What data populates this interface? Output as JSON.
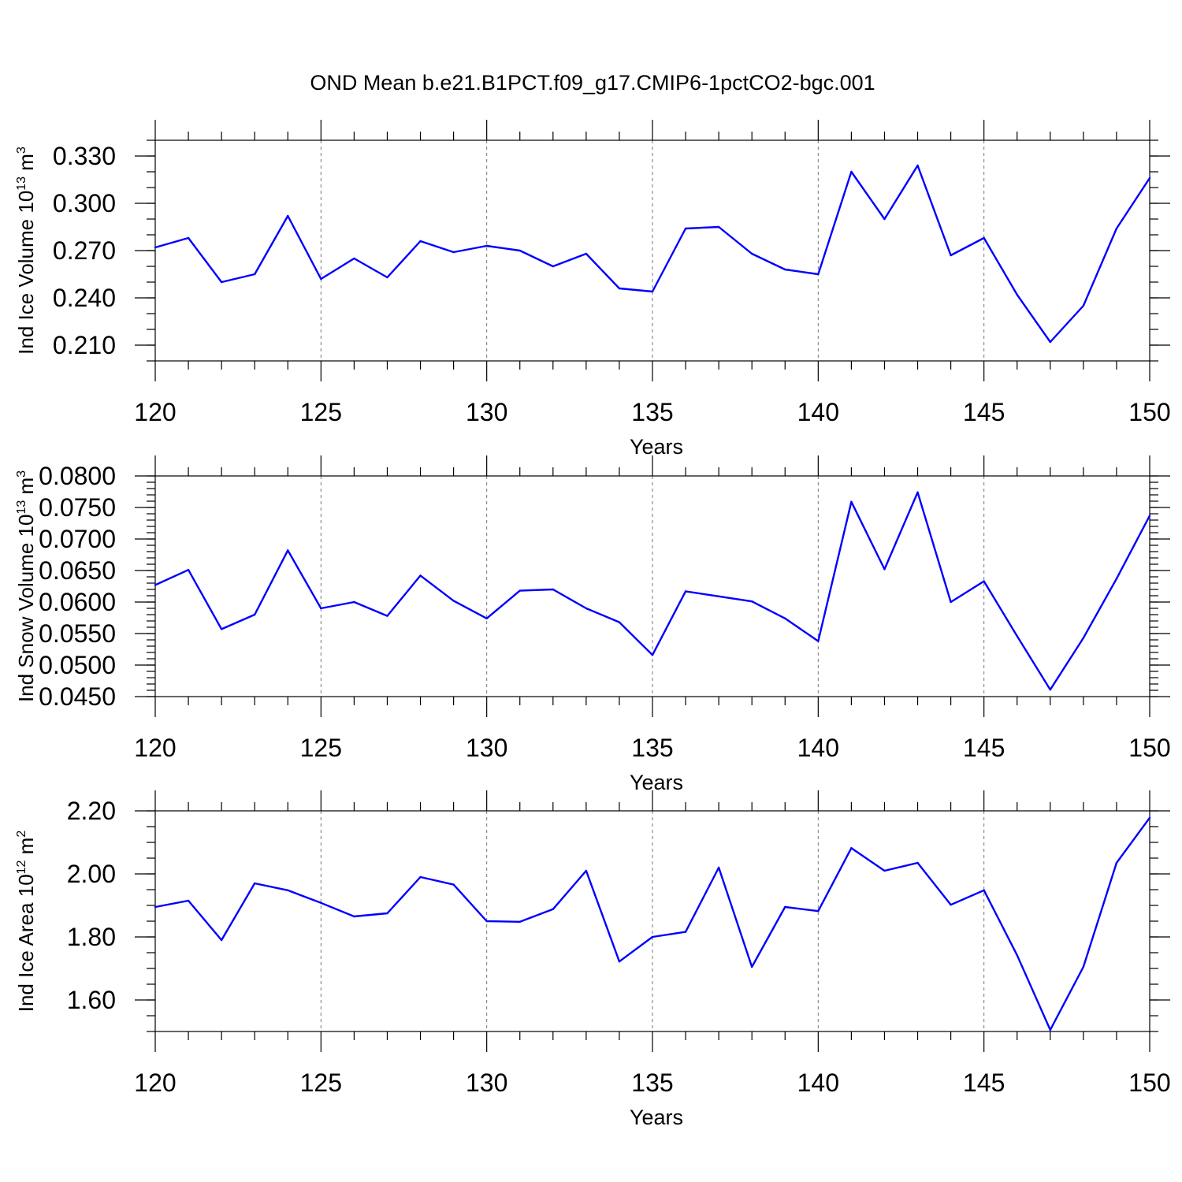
{
  "title": "OND Mean b.e21.B1PCT.f09_g17.CMIP6-1pctCO2-bgc.001",
  "colors": {
    "series": "#0000ff",
    "grid": "#777777",
    "axes": "#000000"
  },
  "chart_data": [
    {
      "type": "line",
      "ylabel": "Ind Ice Volume 10^13 m^3",
      "ylabel_parts": {
        "main": "Ind Ice Volume 10",
        "exp1": "13",
        "mid": " m",
        "exp2": "3"
      },
      "xlabel": "Years",
      "xlim": [
        120,
        150
      ],
      "ylim": [
        0.2,
        0.34
      ],
      "yticks": [
        0.21,
        0.24,
        0.27,
        0.3,
        0.33
      ],
      "ytick_labels": [
        "0.210",
        "0.240",
        "0.270",
        "0.300",
        "0.330"
      ],
      "yminor_step": 0.01,
      "xticks": [
        120,
        125,
        130,
        135,
        140,
        145,
        150
      ],
      "xtick_labels": [
        "120",
        "125",
        "130",
        "135",
        "140",
        "145",
        "150"
      ],
      "grid": "x-dashed",
      "x": [
        120,
        121,
        122,
        123,
        124,
        125,
        126,
        127,
        128,
        129,
        130,
        131,
        132,
        133,
        134,
        135,
        136,
        137,
        138,
        139,
        140,
        141,
        142,
        143,
        144,
        145,
        146,
        147,
        148,
        149,
        150
      ],
      "values": [
        0.272,
        0.278,
        0.25,
        0.255,
        0.292,
        0.252,
        0.265,
        0.253,
        0.276,
        0.269,
        0.273,
        0.27,
        0.26,
        0.268,
        0.246,
        0.244,
        0.284,
        0.285,
        0.268,
        0.258,
        0.255,
        0.32,
        0.29,
        0.324,
        0.267,
        0.278,
        0.242,
        0.212,
        0.235,
        0.284,
        0.316
      ]
    },
    {
      "type": "line",
      "ylabel": "Ind Snow Volume 10^13 m^3",
      "ylabel_parts": {
        "main": "Ind Snow Volume 10",
        "exp1": "13",
        "mid": " m",
        "exp2": "3"
      },
      "xlabel": "Years",
      "xlim": [
        120,
        150
      ],
      "ylim": [
        0.045,
        0.08
      ],
      "yticks": [
        0.045,
        0.05,
        0.055,
        0.06,
        0.065,
        0.07,
        0.075,
        0.08
      ],
      "ytick_labels": [
        "0.0450",
        "0.0500",
        "0.0550",
        "0.0600",
        "0.0650",
        "0.0700",
        "0.0750",
        "0.0800"
      ],
      "yminor_step": 0.001,
      "xticks": [
        120,
        125,
        130,
        135,
        140,
        145,
        150
      ],
      "xtick_labels": [
        "120",
        "125",
        "130",
        "135",
        "140",
        "145",
        "150"
      ],
      "grid": "x-dashed",
      "x": [
        120,
        121,
        122,
        123,
        124,
        125,
        126,
        127,
        128,
        129,
        130,
        131,
        132,
        133,
        134,
        135,
        136,
        137,
        138,
        139,
        140,
        141,
        142,
        143,
        144,
        145,
        146,
        147,
        148,
        149,
        150
      ],
      "values": [
        0.0627,
        0.0651,
        0.0557,
        0.058,
        0.0682,
        0.059,
        0.06,
        0.0578,
        0.0642,
        0.0602,
        0.0574,
        0.0618,
        0.062,
        0.059,
        0.0568,
        0.0516,
        0.0617,
        0.0609,
        0.0601,
        0.0574,
        0.0538,
        0.0759,
        0.0652,
        0.0774,
        0.06,
        0.0633,
        0.0546,
        0.0461,
        0.0543,
        0.0637,
        0.0737
      ]
    },
    {
      "type": "line",
      "ylabel": "Ind Ice Area 10^12 m^2",
      "ylabel_parts": {
        "main": "Ind Ice Area 10",
        "exp1": "12",
        "mid": " m",
        "exp2": "2"
      },
      "xlabel": "Years",
      "xlim": [
        120,
        150
      ],
      "ylim": [
        1.5,
        2.2
      ],
      "yticks": [
        1.6,
        1.8,
        2.0,
        2.2
      ],
      "ytick_labels": [
        "1.60",
        "1.80",
        "2.00",
        "2.20"
      ],
      "yminor_step": 0.05,
      "xticks": [
        120,
        125,
        130,
        135,
        140,
        145,
        150
      ],
      "xtick_labels": [
        "120",
        "125",
        "130",
        "135",
        "140",
        "145",
        "150"
      ],
      "grid": "x-dashed",
      "x": [
        120,
        121,
        122,
        123,
        124,
        125,
        126,
        127,
        128,
        129,
        130,
        131,
        132,
        133,
        134,
        135,
        136,
        137,
        138,
        139,
        140,
        141,
        142,
        143,
        144,
        145,
        146,
        147,
        148,
        149,
        150
      ],
      "values": [
        1.895,
        1.915,
        1.79,
        1.97,
        1.948,
        1.908,
        1.865,
        1.875,
        1.99,
        1.966,
        1.85,
        1.848,
        1.888,
        2.01,
        1.722,
        1.8,
        1.816,
        2.02,
        1.705,
        1.895,
        1.882,
        2.082,
        2.01,
        2.035,
        1.902,
        1.948,
        1.742,
        1.505,
        1.705,
        2.035,
        2.178
      ]
    }
  ]
}
